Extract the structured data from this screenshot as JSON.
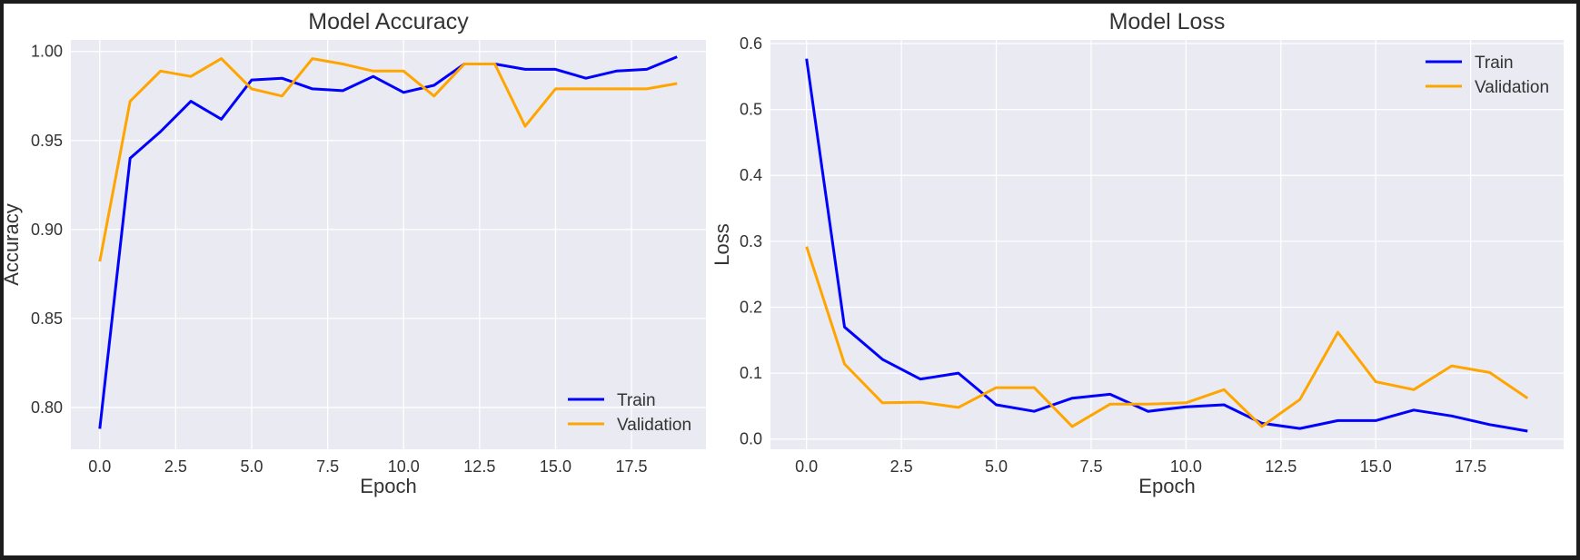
{
  "chart_data": [
    {
      "type": "line",
      "title": "Model Accuracy",
      "xlabel": "Epoch",
      "ylabel": "Accuracy",
      "xlim": [
        -0.95,
        19.95
      ],
      "ylim": [
        0.7765,
        1.0065
      ],
      "xticks": [
        "0.0",
        "2.5",
        "5.0",
        "7.5",
        "10.0",
        "12.5",
        "15.0",
        "17.5"
      ],
      "yticks": [
        "0.80",
        "0.85",
        "0.90",
        "0.95",
        "1.00"
      ],
      "grid": true,
      "legend_position": "lower-right",
      "x": [
        0,
        1,
        2,
        3,
        4,
        5,
        6,
        7,
        8,
        9,
        10,
        11,
        12,
        13,
        14,
        15,
        16,
        17,
        18,
        19
      ],
      "series": [
        {
          "name": "Train",
          "color": "#0000ff",
          "values": [
            0.788,
            0.94,
            0.955,
            0.972,
            0.962,
            0.984,
            0.985,
            0.979,
            0.978,
            0.986,
            0.977,
            0.981,
            0.993,
            0.993,
            0.99,
            0.99,
            0.985,
            0.989,
            0.99,
            0.997
          ]
        },
        {
          "name": "Validation",
          "color": "#ffa500",
          "values": [
            0.882,
            0.972,
            0.989,
            0.986,
            0.996,
            0.979,
            0.975,
            0.996,
            0.993,
            0.989,
            0.989,
            0.975,
            0.993,
            0.993,
            0.958,
            0.979,
            0.979,
            0.979,
            0.979,
            0.982
          ]
        }
      ]
    },
    {
      "type": "line",
      "title": "Model Loss",
      "xlabel": "Epoch",
      "ylabel": "Loss",
      "xlim": [
        -0.95,
        19.95
      ],
      "ylim": [
        -0.0155,
        0.6055
      ],
      "xticks": [
        "0.0",
        "2.5",
        "5.0",
        "7.5",
        "10.0",
        "12.5",
        "15.0",
        "17.5"
      ],
      "yticks": [
        "0.0",
        "0.1",
        "0.2",
        "0.3",
        "0.4",
        "0.5",
        "0.6"
      ],
      "grid": true,
      "legend_position": "upper-right",
      "x": [
        0,
        1,
        2,
        3,
        4,
        5,
        6,
        7,
        8,
        9,
        10,
        11,
        12,
        13,
        14,
        15,
        16,
        17,
        18,
        19
      ],
      "series": [
        {
          "name": "Train",
          "color": "#0000ff",
          "values": [
            0.577,
            0.17,
            0.121,
            0.091,
            0.1,
            0.052,
            0.042,
            0.062,
            0.068,
            0.042,
            0.049,
            0.052,
            0.024,
            0.016,
            0.028,
            0.028,
            0.044,
            0.035,
            0.022,
            0.012
          ]
        },
        {
          "name": "Validation",
          "color": "#ffa500",
          "values": [
            0.292,
            0.114,
            0.055,
            0.056,
            0.048,
            0.078,
            0.078,
            0.019,
            0.053,
            0.053,
            0.055,
            0.075,
            0.019,
            0.06,
            0.162,
            0.087,
            0.075,
            0.111,
            0.101,
            0.062
          ]
        }
      ]
    }
  ]
}
